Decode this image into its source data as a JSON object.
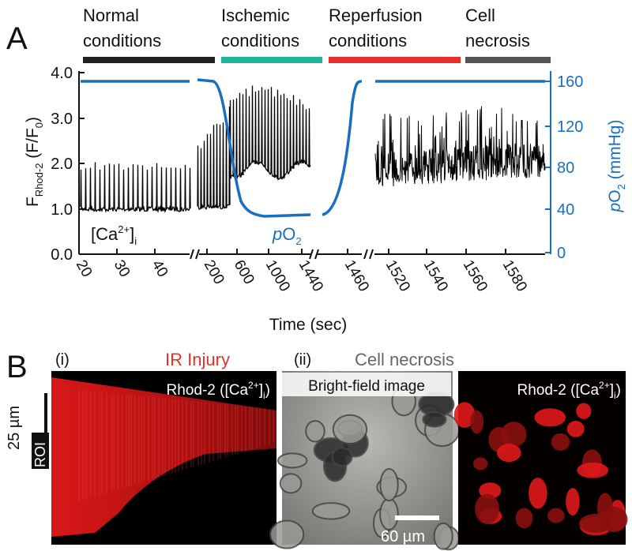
{
  "panel_a": {
    "label": "A",
    "phases": [
      {
        "lines": [
          "Normal",
          "conditions"
        ],
        "color": "#222222"
      },
      {
        "lines": [
          "Ischemic",
          "conditions"
        ],
        "color": "#1fb49a"
      },
      {
        "lines": [
          "Reperfusion",
          "conditions"
        ],
        "color": "#e8302a"
      },
      {
        "lines": [
          "Cell",
          "necrosis"
        ],
        "color": "#555559"
      }
    ],
    "left_axis": {
      "label": {
        "main": "F",
        "sub": "Rhod-2",
        "rest": " (F/F",
        "sub2": "0",
        "close": ")"
      },
      "ticks": [
        "4.0",
        "3.0",
        "2.0",
        "1.0",
        "0.0"
      ]
    },
    "right_axis": {
      "label": {
        "p": "p",
        "o": "O",
        "sub": "2",
        "rest": " (mmHg)"
      },
      "ticks": [
        "160",
        "120",
        "80",
        "40",
        "0"
      ]
    },
    "x_axis": {
      "label": "Time (sec)",
      "ticks": [
        "20",
        "30",
        "40",
        "200",
        "600",
        "1000",
        "1440",
        "1460",
        "1520",
        "1540",
        "1560",
        "1580"
      ]
    },
    "annotations": {
      "ca": {
        "open": "[Ca",
        "sup": "2+",
        "close": "]",
        "sub": "i"
      },
      "po2": {
        "p": "p",
        "o": "O",
        "sub": "2"
      }
    }
  },
  "panel_b": {
    "label": "B",
    "i": {
      "label": "(i)",
      "title": "IR Injury",
      "image_label": {
        "open": "Rhod-2 ([Ca",
        "sup": "2+",
        "close": "]",
        "sub": "i",
        "end": ")"
      },
      "scale": "25 µm",
      "roi": "ROI"
    },
    "ii": {
      "label": "(ii)",
      "title": "Cell necrosis",
      "bright_label": "Bright-field image",
      "scale": "60 µm",
      "image_label": {
        "open": "Rhod-2 ([Ca",
        "sup": "2+",
        "close": "]",
        "sub": "i",
        "end": ")"
      }
    }
  }
}
